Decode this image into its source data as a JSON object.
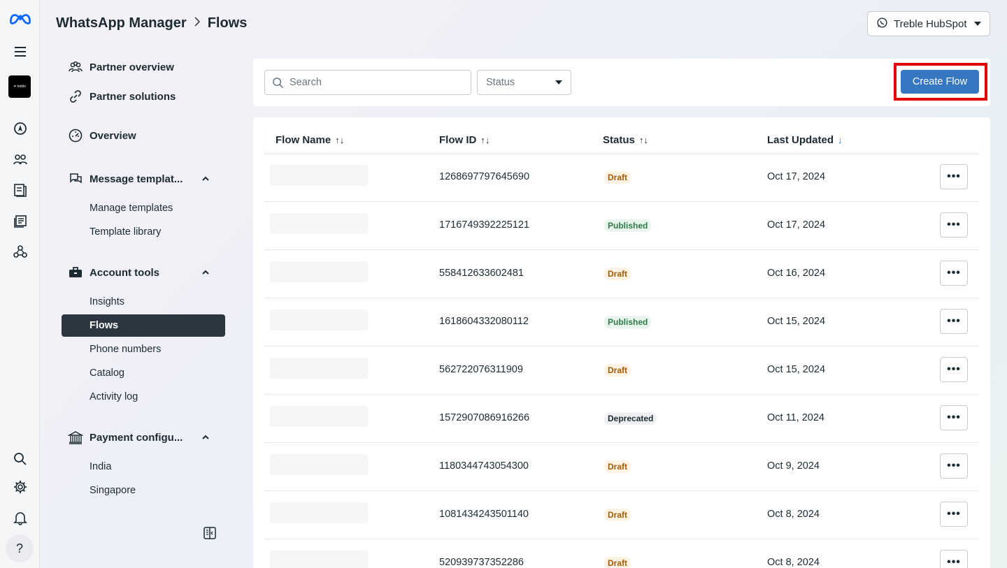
{
  "rail": {
    "icons": [
      "meta-logo-icon",
      "menu-icon",
      "business-avatar",
      "compass-icon",
      "people-icon",
      "book-icon",
      "catalog-icon",
      "network-icon",
      "search-icon",
      "gear-icon",
      "bell-icon",
      "help-icon"
    ],
    "help_glyph": "?"
  },
  "header": {
    "breadcrumb_root": "WhatsApp Manager",
    "breadcrumb_current": "Flows",
    "account_name": "Treble HubSpot"
  },
  "sidebar": {
    "items": [
      {
        "label": "Partner overview"
      },
      {
        "label": "Partner solutions"
      },
      {
        "label": "Overview"
      },
      {
        "label": "Message templat..."
      },
      {
        "label": "Account tools"
      },
      {
        "label": "Payment configu..."
      }
    ],
    "message_templates_sub": [
      "Manage templates",
      "Template library"
    ],
    "account_tools_sub": [
      "Insights",
      "Flows",
      "Phone numbers",
      "Catalog",
      "Activity log"
    ],
    "payment_sub": [
      "India",
      "Singapore"
    ]
  },
  "toolbar": {
    "search_placeholder": "Search",
    "status_label": "Status",
    "create_label": "Create Flow"
  },
  "table": {
    "headers": [
      "Flow Name",
      "Flow ID",
      "Status",
      "Last Updated"
    ],
    "rows": [
      {
        "id": "1268697797645690",
        "status": "Draft",
        "updated": "Oct 17, 2024"
      },
      {
        "id": "1716749392225121",
        "status": "Published",
        "updated": "Oct 17, 2024"
      },
      {
        "id": "558412633602481",
        "status": "Draft",
        "updated": "Oct 16, 2024"
      },
      {
        "id": "1618604332080112",
        "status": "Published",
        "updated": "Oct 15, 2024"
      },
      {
        "id": "562722076311909",
        "status": "Draft",
        "updated": "Oct 15, 2024"
      },
      {
        "id": "1572907086916266",
        "status": "Deprecated",
        "updated": "Oct 11, 2024"
      },
      {
        "id": "1180344743054300",
        "status": "Draft",
        "updated": "Oct 9, 2024"
      },
      {
        "id": "1081434243501140",
        "status": "Draft",
        "updated": "Oct 8, 2024"
      },
      {
        "id": "520939737352286",
        "status": "Draft",
        "updated": "Oct 8, 2024"
      }
    ],
    "more_glyph": "•••"
  },
  "colors": {
    "accent": "#3577c0",
    "highlight_frame": "#e00000",
    "active_nav": "#2b3640"
  }
}
